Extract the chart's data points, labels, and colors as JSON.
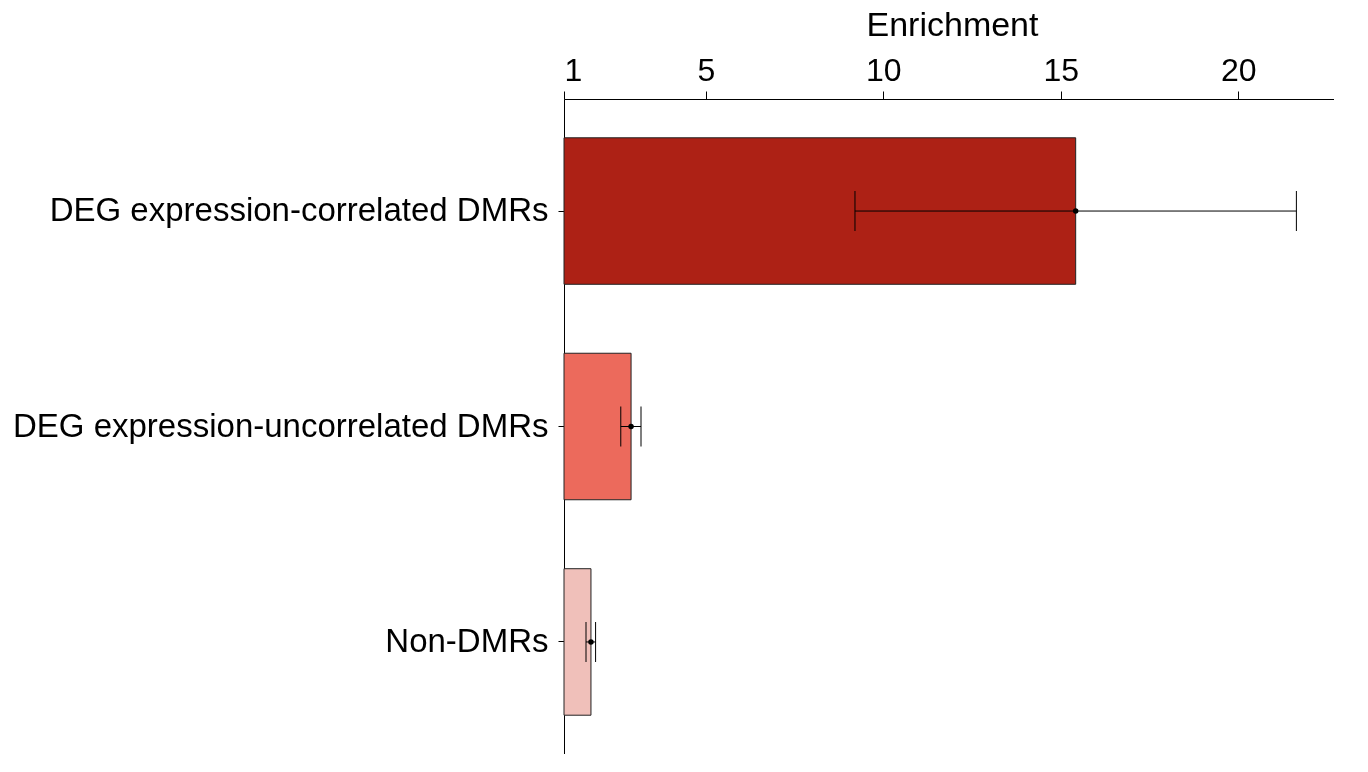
{
  "chart_data": {
    "type": "bar",
    "orientation": "horizontal",
    "xlabel": "Enrichment",
    "categories": [
      "DEG expression-correlated DMRs",
      "DEG expression-uncorrelated DMRs",
      "Non-DMRs"
    ],
    "values": [
      15.42,
      2.89,
      1.76
    ],
    "colors": [
      "#ad2115",
      "#ec6a5c",
      "#f0c0ba"
    ],
    "errors": [
      [
        9.2,
        21.64
      ],
      [
        2.6,
        3.17
      ],
      [
        1.62,
        1.89
      ]
    ],
    "xlim": [
      1,
      22.7
    ],
    "xticks": [
      1,
      5,
      10,
      15,
      20
    ],
    "grid": false
  }
}
